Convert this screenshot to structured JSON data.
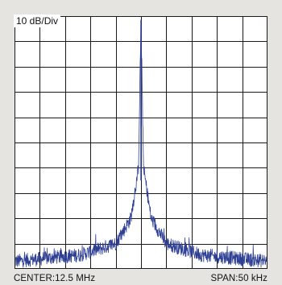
{
  "chart_data": {
    "type": "line",
    "scale_label": "10 dB/Div",
    "center_label": "CENTER:12.5 MHz",
    "span_label": "SPAN:50 kHz",
    "grid": true,
    "grid_divisions": {
      "x": 10,
      "y": 10
    },
    "x_range_khz_offset": [
      -25,
      25
    ],
    "y_range_div": [
      0,
      10
    ],
    "series": [
      {
        "line_color": "#2e3f94",
        "noise_floor_div": 0.3,
        "peak": {
          "x_offset_khz": 0,
          "level_div": 9.85
        },
        "envelope_points": [
          {
            "x_offset_khz": -25,
            "level_div": 0.3
          },
          {
            "x_offset_khz": -12,
            "level_div": 0.55
          },
          {
            "x_offset_khz": -5,
            "level_div": 1.0
          },
          {
            "x_offset_khz": -2,
            "level_div": 2.0
          },
          {
            "x_offset_khz": -0.5,
            "level_div": 4.0
          },
          {
            "x_offset_khz": 0,
            "level_div": 9.85
          },
          {
            "x_offset_khz": 0.5,
            "level_div": 4.0
          },
          {
            "x_offset_khz": 2,
            "level_div": 2.0
          },
          {
            "x_offset_khz": 5,
            "level_div": 1.0
          },
          {
            "x_offset_khz": 12,
            "level_div": 0.55
          },
          {
            "x_offset_khz": 25,
            "level_div": 0.3
          }
        ]
      }
    ]
  },
  "colors": {
    "background": "#e6e4e1",
    "plot_background": "#ffffff",
    "grid": "#1a1a1a",
    "trace": "#2e3f94"
  }
}
